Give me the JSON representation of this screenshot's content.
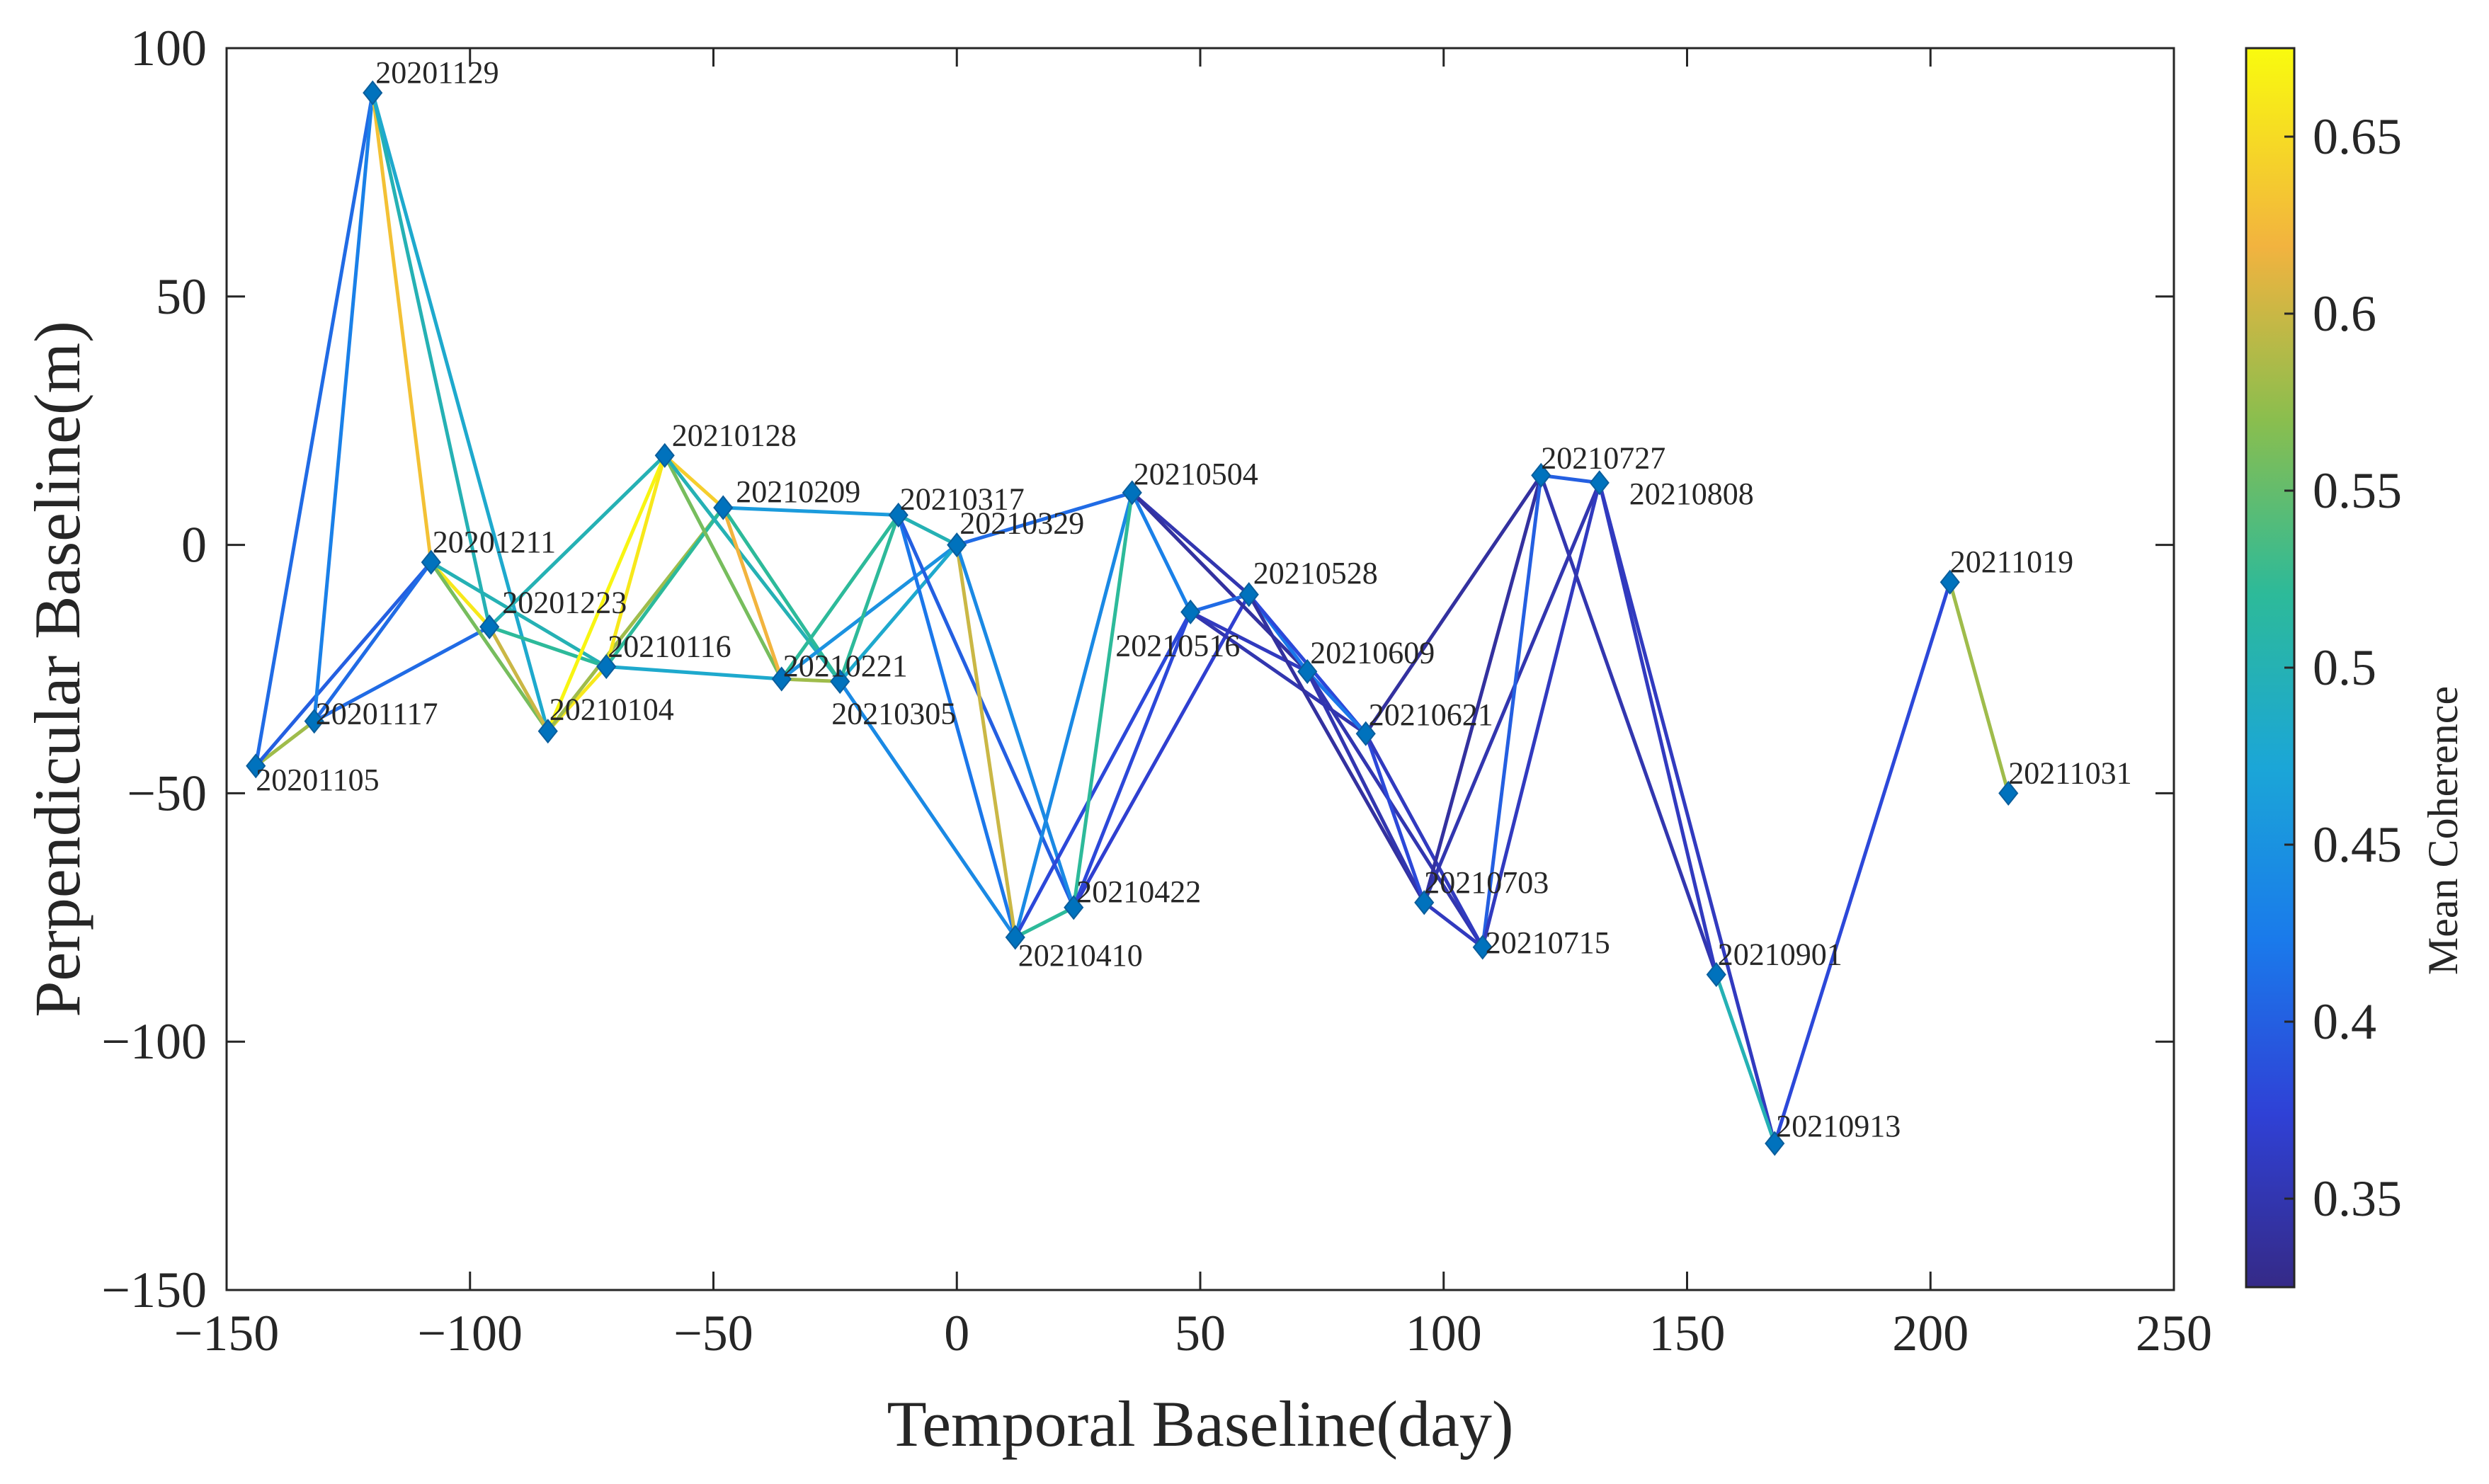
{
  "chart_data": {
    "type": "scatter",
    "title": "",
    "xlabel": "Temporal Baseline(day)",
    "ylabel": "Perpendicular Baseline(m)",
    "xlim": [
      -150,
      250
    ],
    "ylim": [
      -150,
      100
    ],
    "x_ticks": [
      -150,
      -100,
      -50,
      0,
      50,
      100,
      150,
      200,
      250
    ],
    "y_ticks": [
      -150,
      -100,
      -50,
      0,
      50,
      100
    ],
    "x_tick_labels": [
      "−150",
      "−100",
      "−50",
      "0",
      "50",
      "100",
      "150",
      "200",
      "250"
    ],
    "y_tick_labels": [
      "−150",
      "−100",
      "−50",
      "0",
      "50",
      "100"
    ],
    "grid": false,
    "marker_color": "#0072BD",
    "colorbar": {
      "label": "Mean Coherence",
      "range": [
        0.325,
        0.675
      ],
      "ticks": [
        0.35,
        0.4,
        0.45,
        0.5,
        0.55,
        0.6,
        0.65
      ],
      "tick_labels": [
        "0.35",
        "0.4",
        "0.45",
        "0.5",
        "0.55",
        "0.6",
        "0.65"
      ]
    },
    "points": [
      {
        "date": "20201105",
        "x": -144,
        "y": -44.5
      },
      {
        "date": "20201117",
        "x": -132,
        "y": -35.5
      },
      {
        "date": "20201129",
        "x": -120,
        "y": 91
      },
      {
        "date": "20201211",
        "x": -108,
        "y": -3.5
      },
      {
        "date": "20201223",
        "x": -96,
        "y": -16.5
      },
      {
        "date": "20210104",
        "x": -84,
        "y": -37.5
      },
      {
        "date": "20210116",
        "x": -72,
        "y": -24.5
      },
      {
        "date": "20210128",
        "x": -60,
        "y": 18
      },
      {
        "date": "20210209",
        "x": -48,
        "y": 7.5
      },
      {
        "date": "20210221",
        "x": -36,
        "y": -27
      },
      {
        "date": "20210305",
        "x": -24,
        "y": -27.5
      },
      {
        "date": "20210317",
        "x": -12,
        "y": 6
      },
      {
        "date": "20210329",
        "x": 0,
        "y": 0
      },
      {
        "date": "20210410",
        "x": 12,
        "y": -79
      },
      {
        "date": "20210422",
        "x": 24,
        "y": -73
      },
      {
        "date": "20210504",
        "x": 36,
        "y": 10.5
      },
      {
        "date": "20210516",
        "x": 48,
        "y": -13.5
      },
      {
        "date": "20210528",
        "x": 60,
        "y": -10
      },
      {
        "date": "20210609",
        "x": 72,
        "y": -25.5
      },
      {
        "date": "20210621",
        "x": 84,
        "y": -38
      },
      {
        "date": "20210703",
        "x": 96,
        "y": -72
      },
      {
        "date": "20210715",
        "x": 108,
        "y": -81
      },
      {
        "date": "20210727",
        "x": 120,
        "y": 14
      },
      {
        "date": "20210808",
        "x": 132,
        "y": 12.5
      },
      {
        "date": "20210901",
        "x": 156,
        "y": -86.5
      },
      {
        "date": "20210913",
        "x": 168,
        "y": -120.5
      },
      {
        "date": "20211019",
        "x": 204,
        "y": -7.5
      },
      {
        "date": "20211031",
        "x": 216,
        "y": -50
      }
    ],
    "pairs": [
      {
        "from": "20201105",
        "to": "20201117",
        "coherence": 0.58
      },
      {
        "from": "20201105",
        "to": "20201129",
        "coherence": 0.41
      },
      {
        "from": "20201105",
        "to": "20201211",
        "coherence": 0.4
      },
      {
        "from": "20201117",
        "to": "20201129",
        "coherence": 0.43
      },
      {
        "from": "20201117",
        "to": "20201211",
        "coherence": 0.41
      },
      {
        "from": "20201117",
        "to": "20201223",
        "coherence": 0.41
      },
      {
        "from": "20201129",
        "to": "20201211",
        "coherence": 0.63
      },
      {
        "from": "20201129",
        "to": "20201223",
        "coherence": 0.5
      },
      {
        "from": "20201129",
        "to": "20210104",
        "coherence": 0.48
      },
      {
        "from": "20201211",
        "to": "20201223",
        "coherence": 0.66
      },
      {
        "from": "20201211",
        "to": "20210104",
        "coherence": 0.56
      },
      {
        "from": "20201211",
        "to": "20210116",
        "coherence": 0.5
      },
      {
        "from": "20201223",
        "to": "20210104",
        "coherence": 0.6
      },
      {
        "from": "20201223",
        "to": "20210116",
        "coherence": 0.52
      },
      {
        "from": "20201223",
        "to": "20210128",
        "coherence": 0.5
      },
      {
        "from": "20210104",
        "to": "20210116",
        "coherence": 0.66
      },
      {
        "from": "20210104",
        "to": "20210128",
        "coherence": 0.67
      },
      {
        "from": "20210104",
        "to": "20210209",
        "coherence": 0.58
      },
      {
        "from": "20210116",
        "to": "20210128",
        "coherence": 0.66
      },
      {
        "from": "20210116",
        "to": "20210209",
        "coherence": 0.52
      },
      {
        "from": "20210116",
        "to": "20210221",
        "coherence": 0.48
      },
      {
        "from": "20210128",
        "to": "20210209",
        "coherence": 0.64
      },
      {
        "from": "20210128",
        "to": "20210221",
        "coherence": 0.56
      },
      {
        "from": "20210128",
        "to": "20210305",
        "coherence": 0.5
      },
      {
        "from": "20210209",
        "to": "20210221",
        "coherence": 0.62
      },
      {
        "from": "20210209",
        "to": "20210305",
        "coherence": 0.52
      },
      {
        "from": "20210209",
        "to": "20210317",
        "coherence": 0.46
      },
      {
        "from": "20210221",
        "to": "20210305",
        "coherence": 0.58
      },
      {
        "from": "20210221",
        "to": "20210317",
        "coherence": 0.52
      },
      {
        "from": "20210221",
        "to": "20210329",
        "coherence": 0.45
      },
      {
        "from": "20210305",
        "to": "20210317",
        "coherence": 0.52
      },
      {
        "from": "20210305",
        "to": "20210329",
        "coherence": 0.48
      },
      {
        "from": "20210305",
        "to": "20210410",
        "coherence": 0.44
      },
      {
        "from": "20210317",
        "to": "20210329",
        "coherence": 0.5
      },
      {
        "from": "20210317",
        "to": "20210410",
        "coherence": 0.42
      },
      {
        "from": "20210317",
        "to": "20210422",
        "coherence": 0.4
      },
      {
        "from": "20210329",
        "to": "20210410",
        "coherence": 0.6
      },
      {
        "from": "20210329",
        "to": "20210422",
        "coherence": 0.44
      },
      {
        "from": "20210329",
        "to": "20210504",
        "coherence": 0.41
      },
      {
        "from": "20210410",
        "to": "20210422",
        "coherence": 0.52
      },
      {
        "from": "20210410",
        "to": "20210504",
        "coherence": 0.44
      },
      {
        "from": "20210410",
        "to": "20210516",
        "coherence": 0.38
      },
      {
        "from": "20210422",
        "to": "20210504",
        "coherence": 0.52
      },
      {
        "from": "20210422",
        "to": "20210516",
        "coherence": 0.38
      },
      {
        "from": "20210422",
        "to": "20210528",
        "coherence": 0.37
      },
      {
        "from": "20210504",
        "to": "20210516",
        "coherence": 0.43
      },
      {
        "from": "20210504",
        "to": "20210528",
        "coherence": 0.35
      },
      {
        "from": "20210504",
        "to": "20210609",
        "coherence": 0.34
      },
      {
        "from": "20210516",
        "to": "20210528",
        "coherence": 0.41
      },
      {
        "from": "20210516",
        "to": "20210609",
        "coherence": 0.36
      },
      {
        "from": "20210516",
        "to": "20210621",
        "coherence": 0.35
      },
      {
        "from": "20210528",
        "to": "20210609",
        "coherence": 0.42
      },
      {
        "from": "20210528",
        "to": "20210621",
        "coherence": 0.38
      },
      {
        "from": "20210528",
        "to": "20210703",
        "coherence": 0.34
      },
      {
        "from": "20210609",
        "to": "20210621",
        "coherence": 0.42
      },
      {
        "from": "20210609",
        "to": "20210703",
        "coherence": 0.35
      },
      {
        "from": "20210609",
        "to": "20210715",
        "coherence": 0.35
      },
      {
        "from": "20210621",
        "to": "20210703",
        "coherence": 0.38
      },
      {
        "from": "20210621",
        "to": "20210715",
        "coherence": 0.36
      },
      {
        "from": "20210621",
        "to": "20210727",
        "coherence": 0.34
      },
      {
        "from": "20210703",
        "to": "20210715",
        "coherence": 0.36
      },
      {
        "from": "20210703",
        "to": "20210727",
        "coherence": 0.34
      },
      {
        "from": "20210703",
        "to": "20210808",
        "coherence": 0.35
      },
      {
        "from": "20210715",
        "to": "20210727",
        "coherence": 0.4
      },
      {
        "from": "20210715",
        "to": "20210808",
        "coherence": 0.36
      },
      {
        "from": "20210727",
        "to": "20210808",
        "coherence": 0.4
      },
      {
        "from": "20210727",
        "to": "20210901",
        "coherence": 0.35
      },
      {
        "from": "20210808",
        "to": "20210901",
        "coherence": 0.36
      },
      {
        "from": "20210808",
        "to": "20210913",
        "coherence": 0.36
      },
      {
        "from": "20210901",
        "to": "20210913",
        "coherence": 0.5
      },
      {
        "from": "20210913",
        "to": "20211019",
        "coherence": 0.38
      },
      {
        "from": "20211019",
        "to": "20211031",
        "coherence": 0.58
      }
    ]
  }
}
